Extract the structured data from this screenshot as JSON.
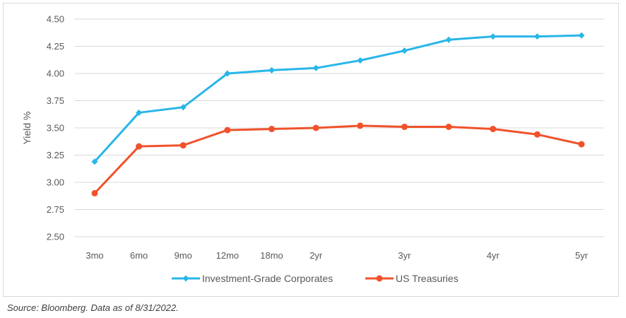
{
  "chart_data": {
    "type": "line",
    "categories": [
      "3mo",
      "6mo",
      "9mo",
      "12mo",
      "18mo",
      "2yr",
      "",
      "3yr",
      "",
      "4yr",
      "",
      "5yr"
    ],
    "series": [
      {
        "name": "Investment-Grade Corporates",
        "color": "#29b6e8",
        "marker": "diamond",
        "values": [
          3.19,
          3.64,
          3.69,
          4.0,
          4.03,
          4.05,
          4.12,
          4.21,
          4.31,
          4.34,
          4.34,
          4.35
        ]
      },
      {
        "name": "US Treasuries",
        "color": "#f0522b",
        "marker": "circle",
        "values": [
          2.9,
          3.33,
          3.34,
          3.48,
          3.49,
          3.5,
          3.52,
          3.51,
          3.51,
          3.49,
          3.44,
          3.35
        ]
      }
    ],
    "ylabel": "Yield %",
    "xlabel": "",
    "title": "",
    "ylim": [
      2.5,
      4.5
    ],
    "yticks": [
      "2.50",
      "2.75",
      "3.00",
      "3.25",
      "3.50",
      "3.75",
      "4.00",
      "4.25",
      "4.50"
    ],
    "grid": true,
    "legend_position": "bottom"
  },
  "source_note": "Source: Bloomberg. Data as of 8/31/2022."
}
